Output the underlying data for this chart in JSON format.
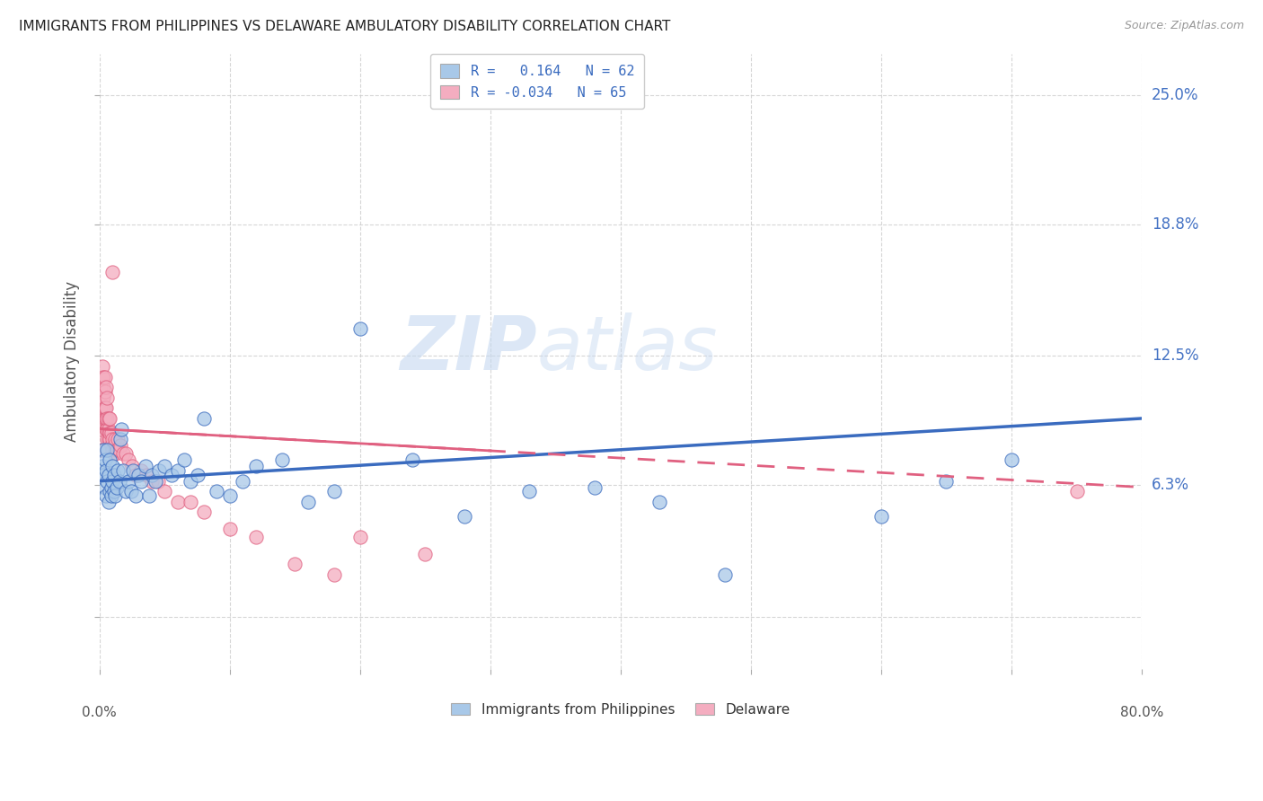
{
  "title": "IMMIGRANTS FROM PHILIPPINES VS DELAWARE AMBULATORY DISABILITY CORRELATION CHART",
  "source": "Source: ZipAtlas.com",
  "ylabel": "Ambulatory Disability",
  "yticks": [
    0.063,
    0.125,
    0.188,
    0.25
  ],
  "ytick_labels": [
    "6.3%",
    "12.5%",
    "18.8%",
    "25.0%"
  ],
  "xlim": [
    0.0,
    0.8
  ],
  "ylim": [
    -0.025,
    0.27
  ],
  "legend_r1": "R =   0.164   N = 62",
  "legend_r2": "R = -0.034   N = 65",
  "color_blue": "#a8c8e8",
  "color_pink": "#f4adc0",
  "line_blue": "#3a6bbf",
  "line_pink": "#e06080",
  "watermark_zip": "ZIP",
  "watermark_atlas": "atlas",
  "blue_scatter_x": [
    0.002,
    0.003,
    0.003,
    0.004,
    0.004,
    0.005,
    0.005,
    0.006,
    0.006,
    0.007,
    0.007,
    0.008,
    0.008,
    0.009,
    0.009,
    0.01,
    0.01,
    0.011,
    0.011,
    0.012,
    0.013,
    0.014,
    0.015,
    0.016,
    0.017,
    0.018,
    0.02,
    0.022,
    0.024,
    0.026,
    0.028,
    0.03,
    0.032,
    0.035,
    0.038,
    0.04,
    0.043,
    0.046,
    0.05,
    0.055,
    0.06,
    0.065,
    0.07,
    0.075,
    0.08,
    0.09,
    0.1,
    0.11,
    0.12,
    0.14,
    0.16,
    0.18,
    0.2,
    0.24,
    0.28,
    0.33,
    0.38,
    0.43,
    0.48,
    0.6,
    0.65,
    0.7
  ],
  "blue_scatter_y": [
    0.072,
    0.068,
    0.08,
    0.062,
    0.075,
    0.058,
    0.07,
    0.065,
    0.08,
    0.055,
    0.068,
    0.06,
    0.075,
    0.062,
    0.058,
    0.065,
    0.072,
    0.06,
    0.068,
    0.058,
    0.062,
    0.07,
    0.065,
    0.085,
    0.09,
    0.07,
    0.06,
    0.065,
    0.06,
    0.07,
    0.058,
    0.068,
    0.065,
    0.072,
    0.058,
    0.068,
    0.065,
    0.07,
    0.072,
    0.068,
    0.07,
    0.075,
    0.065,
    0.068,
    0.095,
    0.06,
    0.058,
    0.065,
    0.072,
    0.075,
    0.055,
    0.06,
    0.138,
    0.075,
    0.048,
    0.06,
    0.062,
    0.055,
    0.02,
    0.048,
    0.065,
    0.075
  ],
  "pink_scatter_x": [
    0.001,
    0.001,
    0.001,
    0.001,
    0.002,
    0.002,
    0.002,
    0.002,
    0.002,
    0.003,
    0.003,
    0.003,
    0.003,
    0.003,
    0.004,
    0.004,
    0.004,
    0.004,
    0.005,
    0.005,
    0.005,
    0.005,
    0.006,
    0.006,
    0.006,
    0.006,
    0.007,
    0.007,
    0.007,
    0.008,
    0.008,
    0.008,
    0.009,
    0.009,
    0.01,
    0.01,
    0.011,
    0.011,
    0.012,
    0.012,
    0.013,
    0.014,
    0.015,
    0.016,
    0.018,
    0.02,
    0.022,
    0.025,
    0.028,
    0.032,
    0.036,
    0.04,
    0.045,
    0.05,
    0.06,
    0.07,
    0.08,
    0.1,
    0.12,
    0.15,
    0.18,
    0.2,
    0.25,
    0.01,
    0.75
  ],
  "pink_scatter_y": [
    0.08,
    0.09,
    0.1,
    0.11,
    0.1,
    0.105,
    0.11,
    0.115,
    0.12,
    0.095,
    0.1,
    0.105,
    0.11,
    0.115,
    0.095,
    0.1,
    0.108,
    0.115,
    0.09,
    0.095,
    0.1,
    0.11,
    0.085,
    0.09,
    0.095,
    0.105,
    0.085,
    0.09,
    0.095,
    0.085,
    0.088,
    0.095,
    0.082,
    0.088,
    0.08,
    0.085,
    0.078,
    0.082,
    0.078,
    0.085,
    0.08,
    0.085,
    0.08,
    0.082,
    0.078,
    0.078,
    0.075,
    0.072,
    0.068,
    0.07,
    0.068,
    0.065,
    0.065,
    0.06,
    0.055,
    0.055,
    0.05,
    0.042,
    0.038,
    0.025,
    0.02,
    0.038,
    0.03,
    0.165,
    0.06
  ]
}
